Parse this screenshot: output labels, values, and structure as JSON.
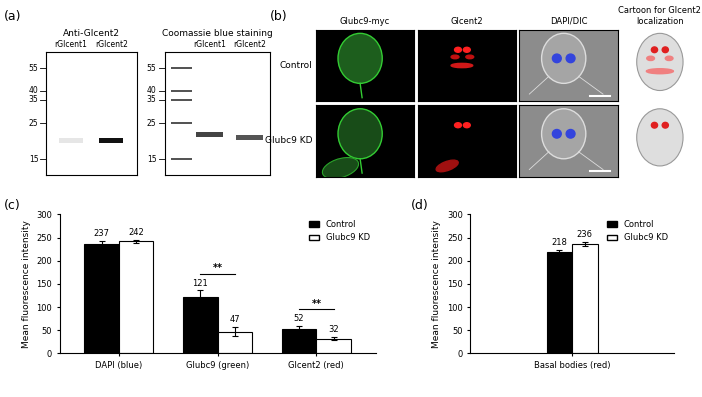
{
  "panel_labels": [
    "(a)",
    "(b)",
    "(c)",
    "(d)"
  ],
  "blots": [
    {
      "title": "Anti-Glcent2",
      "lanes": [
        "rGlcent1",
        "rGlcent2"
      ],
      "markers_kda": [
        55,
        40,
        35,
        25,
        15
      ],
      "ladder_lane": false
    },
    {
      "title": "Coomassie blue staining",
      "lanes": [
        "rGlcent1",
        "rGlcent2"
      ],
      "markers_kda": [
        55,
        40,
        35,
        25,
        15
      ],
      "ladder_lane": true
    }
  ],
  "microscopy": {
    "columns": [
      "Glubc9-myc",
      "Glcent2",
      "DAPI/DIC",
      "Cartoon for Glcent2 localization"
    ],
    "rows": [
      "Control",
      "Glubc9 KD"
    ]
  },
  "chart_data": [
    {
      "type": "bar",
      "categories": [
        "DAPI (blue)",
        "Glubc9 (green)",
        "Glcent2 (red)"
      ],
      "y_label": "Mean fluorescence intensity",
      "ylim": [
        0,
        300
      ],
      "yticks": [
        0,
        50,
        100,
        150,
        200,
        250,
        300
      ],
      "legend": "upper right",
      "data_labels": true,
      "series": [
        {
          "name": "Control",
          "color": "#000000",
          "values": [
            237,
            121,
            52
          ],
          "errors": [
            5,
            15,
            7
          ]
        },
        {
          "name": "Glubc9 KD",
          "color": "#ffffff",
          "values": [
            242,
            47,
            32
          ],
          "errors": [
            3,
            10,
            3
          ]
        }
      ],
      "annotations": [
        {
          "category": "Glubc9 (green)",
          "text": "**"
        },
        {
          "category": "Glcent2 (red)",
          "text": "**"
        }
      ]
    },
    {
      "type": "bar",
      "categories": [
        "Basal bodies (red)"
      ],
      "y_label": "Mean fluorescence intensity",
      "ylim": [
        0,
        300
      ],
      "yticks": [
        0,
        50,
        100,
        150,
        200,
        250,
        300
      ],
      "legend": "upper right",
      "data_labels": true,
      "series": [
        {
          "name": "Control",
          "color": "#000000",
          "values": [
            218
          ],
          "errors": [
            6
          ]
        },
        {
          "name": "Glubc9 KD",
          "color": "#ffffff",
          "values": [
            236
          ],
          "errors": [
            5
          ]
        }
      ]
    }
  ]
}
